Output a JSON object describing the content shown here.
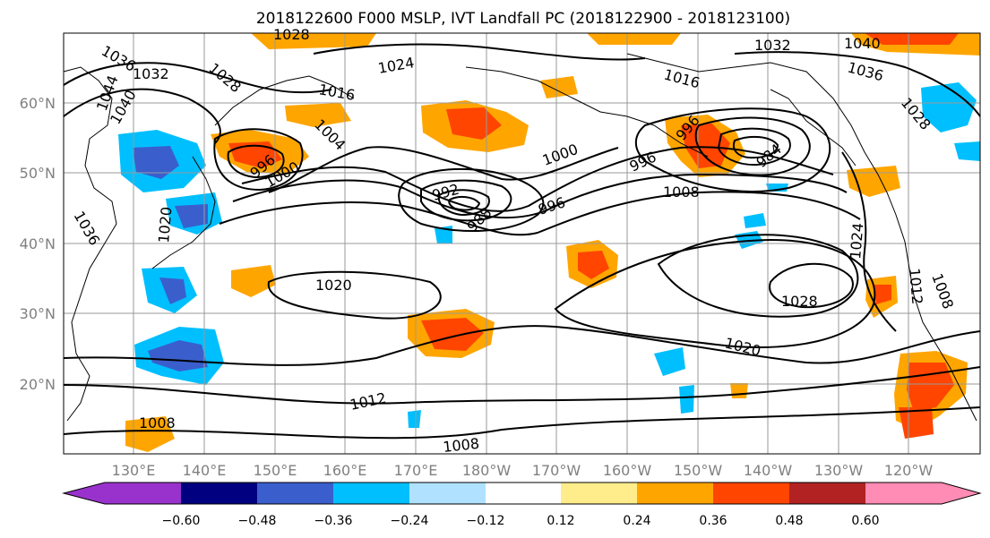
{
  "title": "2018122600 F000 MSLP, IVT Landfall PC (2018122900 - 2018123100)",
  "map": {
    "lat_labels": [
      "60°N",
      "50°N",
      "40°N",
      "30°N",
      "20°N"
    ],
    "lon_labels": [
      "130°E",
      "140°E",
      "150°E",
      "160°E",
      "170°E",
      "180°W",
      "170°W",
      "160°W",
      "150°W",
      "140°W",
      "130°W",
      "120°W"
    ],
    "contour_labels": [
      "1036",
      "1032",
      "1028",
      "1024",
      "1020",
      "1016",
      "1012",
      "1008",
      "1004",
      "1000",
      "996",
      "992",
      "988",
      "984",
      "1040",
      "1044"
    ]
  },
  "colorbar": {
    "ticks": [
      "−0.60",
      "−0.48",
      "−0.36",
      "−0.24",
      "−0.12",
      "0.12",
      "0.24",
      "0.36",
      "0.48",
      "0.60"
    ],
    "colors": [
      "#9932cc",
      "#000080",
      "#3a5fcd",
      "#00bfff",
      "#b0e2ff",
      "#ffffff",
      "#ffec8b",
      "#ffa500",
      "#ff4500",
      "#b22222",
      "#ff8cb4"
    ]
  }
}
